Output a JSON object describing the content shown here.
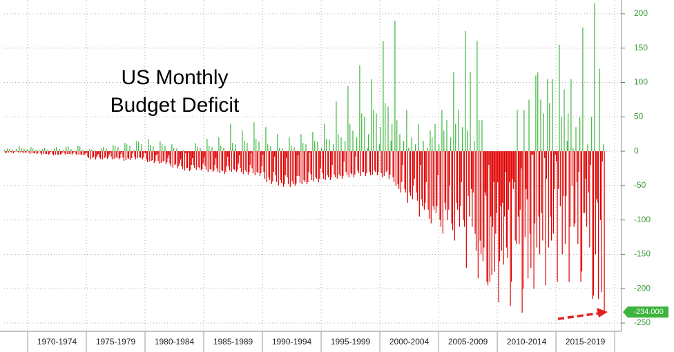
{
  "chart_data": {
    "type": "bar",
    "title_lines": [
      "US Monthly",
      "Budget Deficit"
    ],
    "positive_color": "#3cb43c",
    "negative_color": "#e00000",
    "xlim": [
      0,
      631
    ],
    "xgrid": [
      24,
      84,
      144,
      204,
      264,
      324,
      384,
      444,
      504,
      564,
      624
    ],
    "xticks": [
      {
        "value": 54,
        "label": "1970-1974"
      },
      {
        "value": 114,
        "label": "1975-1979"
      },
      {
        "value": 174,
        "label": "1980-1984"
      },
      {
        "value": 234,
        "label": "1985-1989"
      },
      {
        "value": 294,
        "label": "1990-1994"
      },
      {
        "value": 354,
        "label": "1995-1999"
      },
      {
        "value": 414,
        "label": "2000-2004"
      },
      {
        "value": 474,
        "label": "2005-2009"
      },
      {
        "value": 534,
        "label": "2010-2014"
      },
      {
        "value": 594,
        "label": "2015-2019"
      }
    ],
    "ylim": [
      -262,
      220
    ],
    "yticks": [
      200,
      150,
      100,
      50,
      0,
      -50,
      -100,
      -150,
      -200,
      -250
    ],
    "grid": true,
    "last_label": {
      "value": -234,
      "label": "-234.000"
    },
    "values": [
      2,
      -3,
      -2,
      4,
      -2,
      3,
      -1,
      -2,
      2,
      -3,
      -1,
      1,
      3,
      -1,
      -2,
      8,
      -2,
      5,
      -1,
      -3,
      4,
      -2,
      -2,
      2,
      2,
      -2,
      -4,
      6,
      -3,
      4,
      -3,
      -3,
      2,
      -4,
      -3,
      1,
      1,
      -3,
      -5,
      3,
      -4,
      5,
      -4,
      -4,
      2,
      -5,
      -4,
      -1,
      1,
      -4,
      -6,
      4,
      -5,
      6,
      -5,
      -5,
      3,
      -5,
      -4,
      -2,
      2,
      -3,
      -5,
      6,
      -4,
      7,
      -4,
      -4,
      3,
      -5,
      -3,
      -1,
      1,
      -4,
      -6,
      8,
      -5,
      7,
      -5,
      -5,
      2,
      -6,
      -5,
      -3,
      -2,
      -8,
      -10,
      3,
      -12,
      2,
      -10,
      -8,
      1,
      -12,
      -9,
      -6,
      -4,
      -9,
      -11,
      4,
      -12,
      6,
      -10,
      -9,
      4,
      -11,
      -9,
      -5,
      -2,
      -8,
      -12,
      9,
      -11,
      8,
      -9,
      -10,
      6,
      -12,
      -10,
      -4,
      -1,
      -9,
      -14,
      12,
      -13,
      10,
      -10,
      -11,
      8,
      -13,
      -10,
      -3,
      2,
      -8,
      -12,
      15,
      -10,
      14,
      -9,
      -10,
      10,
      -12,
      -9,
      -2,
      -3,
      -12,
      -16,
      18,
      -15,
      9,
      -14,
      -13,
      7,
      -17,
      -14,
      -6,
      -4,
      -14,
      -18,
      15,
      -17,
      10,
      -15,
      -14,
      8,
      -19,
      -16,
      -10,
      -6,
      -18,
      -22,
      10,
      -24,
      5,
      -20,
      -19,
      4,
      -25,
      -22,
      -18,
      -12,
      -22,
      -26,
      2,
      -28,
      -3,
      -25,
      -24,
      -2,
      -29,
      -27,
      -20,
      -10,
      -20,
      -24,
      12,
      -27,
      6,
      -23,
      -25,
      5,
      -28,
      -26,
      -18,
      -9,
      -22,
      -27,
      18,
      -30,
      8,
      -26,
      -27,
      6,
      -30,
      -28,
      -20,
      -10,
      -25,
      -30,
      20,
      -32,
      8,
      -28,
      -29,
      5,
      -33,
      -30,
      -22,
      -8,
      -22,
      -28,
      40,
      -30,
      12,
      -26,
      -27,
      10,
      -30,
      -27,
      -18,
      -6,
      -24,
      -30,
      30,
      -33,
      15,
      -28,
      -30,
      12,
      -34,
      -30,
      -20,
      -3,
      -25,
      -32,
      42,
      -35,
      18,
      -30,
      -32,
      14,
      -36,
      -32,
      -22,
      -5,
      -30,
      -40,
      35,
      -45,
      10,
      -38,
      -42,
      8,
      -48,
      -44,
      -30,
      -8,
      -35,
      -45,
      25,
      -50,
      5,
      -42,
      -46,
      4,
      -52,
      -48,
      -35,
      -10,
      -38,
      -48,
      20,
      -52,
      8,
      -44,
      -48,
      6,
      -50,
      -47,
      -36,
      -6,
      -36,
      -46,
      25,
      -48,
      12,
      -42,
      -45,
      10,
      -48,
      -45,
      -30,
      -2,
      -33,
      -42,
      28,
      -44,
      15,
      -38,
      -40,
      14,
      -45,
      -40,
      -25,
      5,
      -32,
      -40,
      40,
      -42,
      18,
      -35,
      -38,
      17,
      -42,
      -38,
      -20,
      10,
      -34,
      -38,
      72,
      -40,
      25,
      -34,
      -36,
      20,
      -40,
      -36,
      -15,
      15,
      -30,
      -35,
      95,
      -38,
      40,
      -32,
      -34,
      30,
      -38,
      -34,
      -8,
      20,
      -28,
      -32,
      125,
      -36,
      55,
      -30,
      -30,
      50,
      -36,
      -32,
      5,
      25,
      -30,
      -35,
      105,
      -34,
      60,
      -28,
      -30,
      55,
      -35,
      -30,
      10,
      35,
      -32,
      -38,
      160,
      -36,
      70,
      -30,
      -28,
      65,
      -40,
      -34,
      15,
      40,
      -38,
      -45,
      190,
      -50,
      45,
      -48,
      -55,
      25,
      -60,
      -45,
      -20,
      15,
      -55,
      -60,
      60,
      -75,
      5,
      -60,
      -65,
      20,
      -70,
      -50,
      -40,
      10,
      -60,
      -72,
      40,
      -95,
      -20,
      -70,
      -80,
      15,
      -85,
      -75,
      -45,
      5,
      -85,
      -98,
      30,
      -105,
      20,
      -80,
      -85,
      40,
      -90,
      -80,
      -35,
      10,
      -100,
      -110,
      60,
      -120,
      30,
      -75,
      -85,
      45,
      -100,
      -85,
      -50,
      20,
      -105,
      -115,
      115,
      -130,
      40,
      -75,
      -85,
      60,
      -110,
      -80,
      -45,
      35,
      -100,
      -110,
      175,
      -170,
      30,
      -65,
      -95,
      115,
      -55,
      -110,
      -60,
      15,
      -120,
      -145,
      160,
      -185,
      45,
      -130,
      -150,
      45,
      -160,
      -140,
      -60,
      -65,
      -190,
      -195,
      -20,
      -190,
      -95,
      -180,
      -110,
      -45,
      -175,
      -120,
      -90,
      -45,
      -220,
      -160,
      -80,
      -145,
      -75,
      -165,
      -95,
      -30,
      -140,
      -155,
      -85,
      -45,
      -225,
      -190,
      -40,
      -55,
      -45,
      -130,
      -135,
      60,
      -95,
      -135,
      -85,
      -25,
      -235,
      -200,
      60,
      -125,
      -55,
      -70,
      -185,
      75,
      -120,
      -170,
      -5,
      -5,
      -200,
      -105,
      110,
      -140,
      115,
      -95,
      -150,
      75,
      -90,
      -130,
      55,
      -10,
      -195,
      -40,
      105,
      -140,
      70,
      -95,
      -130,
      105,
      -120,
      -55,
      -5,
      -15,
      -190,
      -55,
      155,
      -80,
      50,
      -150,
      -65,
      90,
      -135,
      -65,
      15,
      55,
      -190,
      -110,
      105,
      -50,
      5,
      -110,
      -105,
      35,
      -45,
      -135,
      -30,
      50,
      -190,
      -175,
      180,
      -90,
      -90,
      -40,
      -110,
      10,
      -60,
      -140,
      -20,
      50,
      -215,
      -210,
      215,
      -150,
      -70,
      -75,
      -215,
      120,
      -100,
      -205,
      -15,
      10,
      -234
    ]
  }
}
